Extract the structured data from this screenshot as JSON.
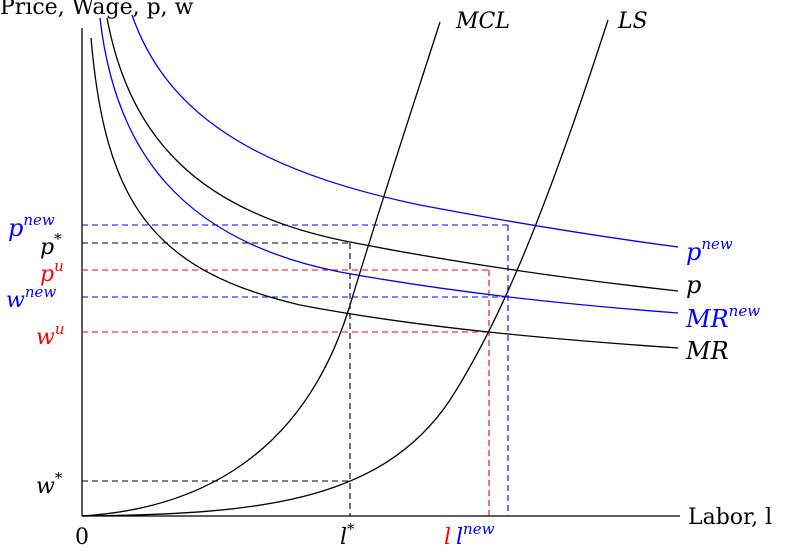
{
  "colors": {
    "black": "#000000",
    "blue": "#0000ff",
    "red": "#ff0000"
  },
  "axis": {
    "y_title": "Price, Wage, p, w",
    "x_title": "Labor, l",
    "origin": "0"
  },
  "curves": {
    "mcl": "MCL",
    "ls": "LS",
    "p_new": "p",
    "p_new_sup": "new",
    "p": "p",
    "mr_new": "MR",
    "mr_new_sup": "new",
    "mr": "MR"
  },
  "y_ticks": {
    "p_new": "p",
    "p_new_sup": "new",
    "p_star": "p",
    "p_star_sup": "*",
    "p_u": "p",
    "p_u_sup": "u",
    "w_new": "w",
    "w_new_sup": "new",
    "w_u": "w",
    "w_u_sup": "u",
    "w_star": "w",
    "w_star_sup": "*"
  },
  "x_ticks": {
    "l_star": "l",
    "l_star_sup": "*",
    "l_u": "l",
    "l_new": "l",
    "l_new_sup": "new"
  }
}
